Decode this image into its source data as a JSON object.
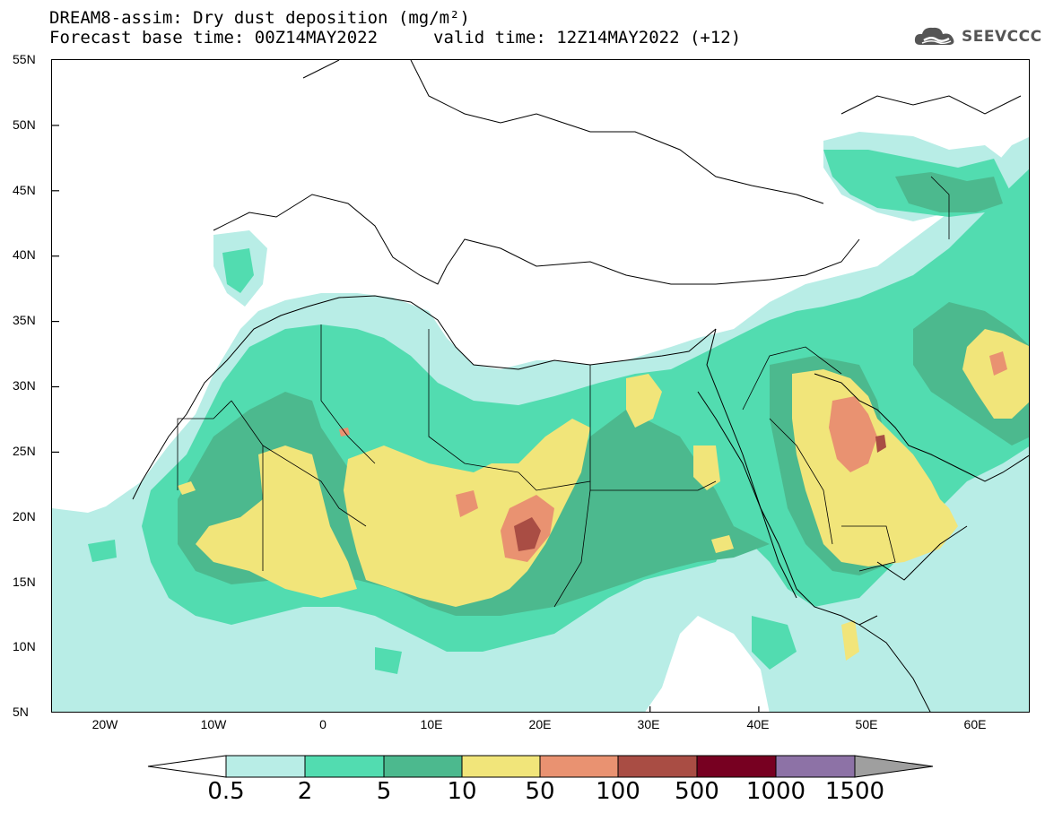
{
  "header": {
    "title_line1": "DREAM8-assim: Dry dust deposition (mg/m²)",
    "title_line2": "Forecast base time: 00Z14MAY2022",
    "valid_time": "valid time: 12Z14MAY2022 (+12)",
    "logo_text": "SEEVCCC",
    "logo_icon": "cloud-logo-icon"
  },
  "map": {
    "lon_range": [
      -25,
      65
    ],
    "lat_range": [
      5,
      55
    ],
    "lat_labels": [
      "55N",
      "50N",
      "45N",
      "40N",
      "35N",
      "30N",
      "25N",
      "20N",
      "15N",
      "10N",
      "5N"
    ],
    "lat_values": [
      55,
      50,
      45,
      40,
      35,
      30,
      25,
      20,
      15,
      10,
      5
    ],
    "lon_labels": [
      "20W",
      "10W",
      "0",
      "10E",
      "20E",
      "30E",
      "40E",
      "50E",
      "60E"
    ],
    "lon_values": [
      -20,
      -10,
      0,
      10,
      20,
      30,
      40,
      50,
      60
    ]
  },
  "legend": {
    "labels": [
      "0.5",
      "2",
      "5",
      "10",
      "50",
      "100",
      "500",
      "1000",
      "1500"
    ],
    "colors": [
      "#b8ede6",
      "#52dcb0",
      "#4cb98e",
      "#f1e57a",
      "#e99271",
      "#a94d44",
      "#770021",
      "#8d72a6",
      "#9f9f9f"
    ],
    "outline": "#000000"
  },
  "chart_data": {
    "type": "heatmap",
    "variable": "Dry dust deposition",
    "unit": "mg/m²",
    "model": "DREAM8-assim",
    "base_time": "00Z14MAY2022",
    "valid_time": "12Z14MAY2022",
    "lead_hours": 12,
    "contour_levels": [
      0.5,
      2,
      5,
      10,
      50,
      100,
      500,
      1000,
      1500
    ],
    "extent": {
      "lon": [
        -25,
        65
      ],
      "lat": [
        5,
        55
      ]
    }
  }
}
